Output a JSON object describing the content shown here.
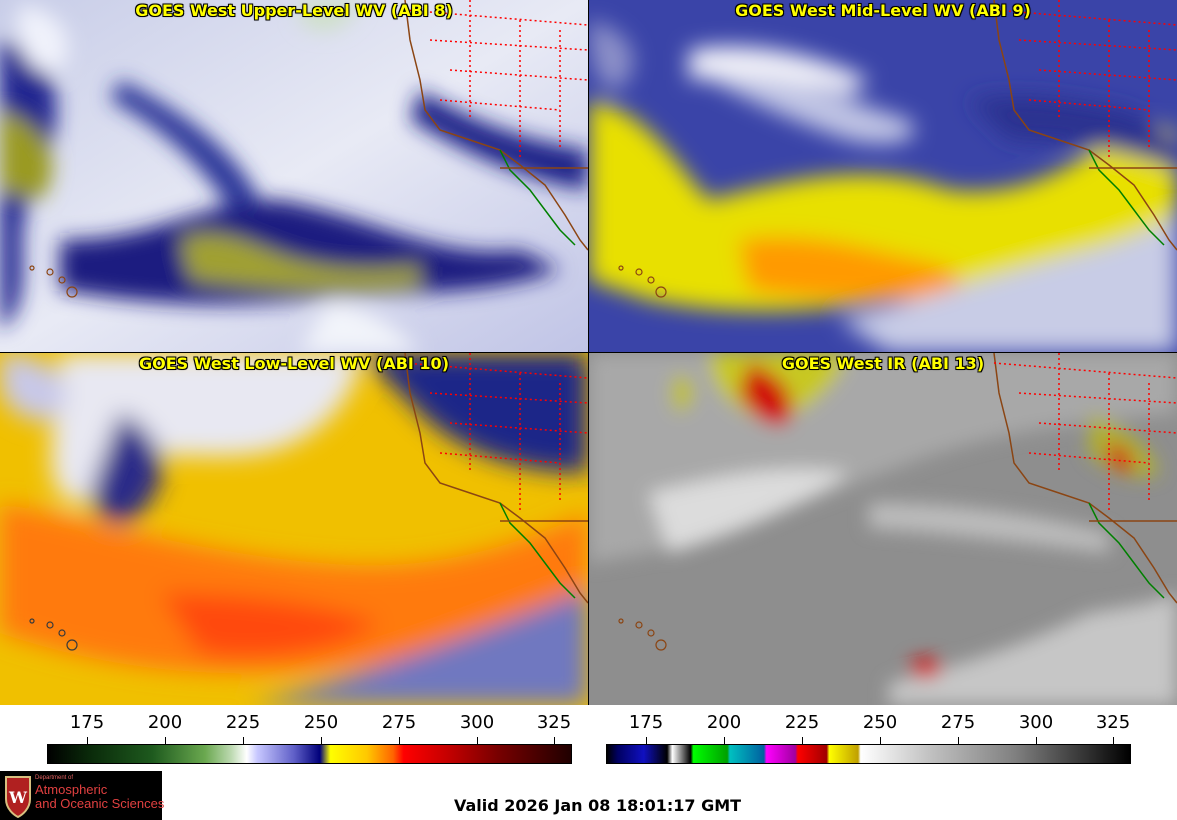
{
  "panels": [
    {
      "title": "GOES West Upper-Level WV (ABI 8)",
      "palette": "wv-upper"
    },
    {
      "title": "GOES West Mid-Level WV (ABI 9)",
      "palette": "wv-mid"
    },
    {
      "title": "GOES West Low-Level WV (ABI 10)",
      "palette": "wv-low"
    },
    {
      "title": "GOES West IR (ABI 13)",
      "palette": "ir"
    }
  ],
  "colorbars": [
    {
      "name": "water-vapor-colorbar",
      "ticks": [
        "175",
        "200",
        "225",
        "250",
        "275",
        "300",
        "325"
      ]
    },
    {
      "name": "infrared-colorbar",
      "ticks": [
        "175",
        "200",
        "225",
        "250",
        "275",
        "300",
        "325"
      ]
    }
  ],
  "logo": {
    "line1": "Department of",
    "line2": "Atmospheric",
    "line3": "and Oceanic Sciences",
    "icon": "uw-crest-icon"
  },
  "valid_text": "Valid 2026 Jan 08 18:01:17 GMT",
  "colors": {
    "title_text": "#ffff00",
    "coast": "#8b4513",
    "borders": "#ff0000",
    "mexico_coast": "#008000"
  }
}
